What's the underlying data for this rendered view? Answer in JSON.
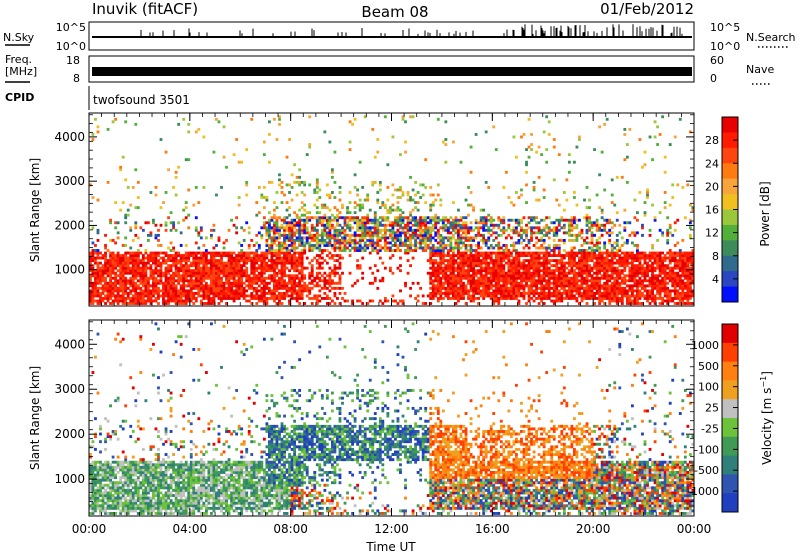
{
  "header": {
    "station": "Inuvik (fitACF)",
    "beam": "Beam 08",
    "date": "01/Feb/2012"
  },
  "top_panels": {
    "nsky_label": "N.Sky",
    "nsky_ticks": [
      "10^5",
      "10^0"
    ],
    "nsearch_label": "N.Search",
    "nsearch_ticks": [
      "10^5",
      "10^0"
    ],
    "freq_label_1": "Freq.",
    "freq_label_2": "[MHz]",
    "freq_ticks": [
      "18",
      "8"
    ],
    "nave_label": "Nave",
    "nave_ticks": [
      "60",
      "0"
    ],
    "cpid_label": "CPID",
    "cpid_value": "twofsound 3501"
  },
  "chart_data": [
    {
      "type": "heatmap",
      "title": "",
      "xlabel": "Time UT",
      "ylabel": "Slant Range [km]",
      "x_ticks": [
        "00:00",
        "04:00",
        "08:00",
        "12:00",
        "16:00",
        "20:00",
        "00:00"
      ],
      "y_ticks": [
        "1000",
        "2000",
        "3000",
        "4000"
      ],
      "xlim": [
        0,
        24
      ],
      "ylim": [
        180,
        4540
      ],
      "colorbar": {
        "label": "Power [dB]",
        "ticks": [
          "4",
          "8",
          "12",
          "16",
          "20",
          "24",
          "28"
        ],
        "colors": [
          "#0010ff",
          "#2a46c0",
          "#2f6b8c",
          "#3b8c5a",
          "#52b03a",
          "#9bc83a",
          "#f0c020",
          "#f7a43a",
          "#ff7a10",
          "#ff4410",
          "#ff1a00",
          "#e80000"
        ]
      }
    },
    {
      "type": "heatmap",
      "title": "",
      "xlabel": "Time UT",
      "ylabel": "Slant Range [km]",
      "x_ticks": [
        "00:00",
        "04:00",
        "08:00",
        "12:00",
        "16:00",
        "20:00",
        "00:00"
      ],
      "y_ticks": [
        "1000",
        "2000",
        "3000",
        "4000"
      ],
      "xlim": [
        0,
        24
      ],
      "ylim": [
        180,
        4540
      ],
      "colorbar": {
        "label": "Velocity [m s^-1]",
        "ticks": [
          "1000",
          "500",
          "100",
          "25",
          "-25",
          "-100",
          "-500",
          "-1000"
        ],
        "colors": [
          "#1f3fbf",
          "#2f55b0",
          "#2f7f7a",
          "#3e9a55",
          "#6cc23b",
          "#c0c0c0",
          "#f0a020",
          "#ff8010",
          "#ff4000",
          "#e00000"
        ]
      }
    }
  ]
}
